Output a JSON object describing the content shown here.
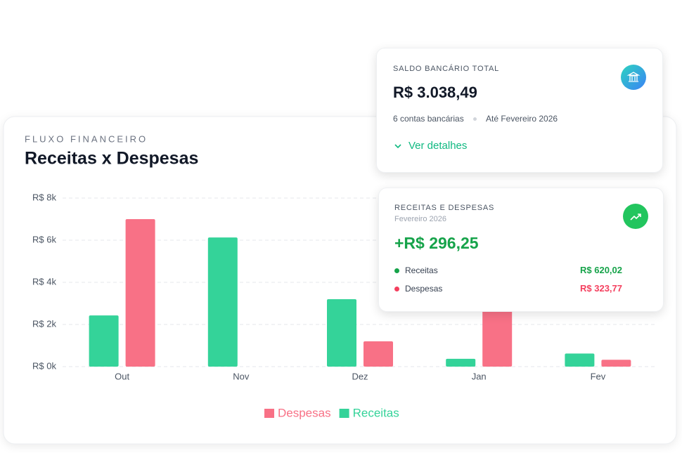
{
  "chart_data": {
    "type": "bar",
    "overline": "FLUXO FINANCEIRO",
    "title": "Receitas x Despesas",
    "categories": [
      "Out",
      "Nov",
      "Dez",
      "Jan",
      "Fev"
    ],
    "series": [
      {
        "name": "Receitas",
        "color": "#34d399",
        "values": [
          2430,
          6130,
          3200,
          370,
          620
        ]
      },
      {
        "name": "Despesas",
        "color": "#f87186",
        "values": [
          7000,
          0,
          1200,
          2700,
          324
        ]
      }
    ],
    "ylim": [
      0,
      8000
    ],
    "yticks": [
      {
        "value": 0,
        "label": "R$ 0k"
      },
      {
        "value": 2000,
        "label": "R$ 2k"
      },
      {
        "value": 4000,
        "label": "R$ 4k"
      },
      {
        "value": 6000,
        "label": "R$ 6k"
      },
      {
        "value": 8000,
        "label": "R$ 8k"
      }
    ],
    "grid": true
  },
  "balance_card": {
    "title": "SALDO BANCÁRIO TOTAL",
    "amount": "R$ 3.038,49",
    "accounts": "6 contas bancárias",
    "period": "Até Fevereiro 2026",
    "link": "Ver detalhes"
  },
  "summary_card": {
    "title": "RECEITAS E DESPESAS",
    "subtitle": "Fevereiro 2026",
    "net": "+R$ 296,25",
    "rows": [
      {
        "label": "Receitas",
        "value": "R$ 620,02"
      },
      {
        "label": "Despesas",
        "value": "R$ 323,77"
      }
    ]
  }
}
